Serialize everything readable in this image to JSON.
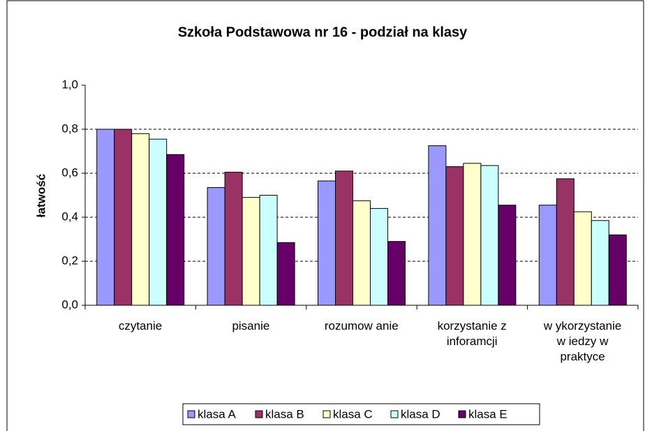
{
  "chart_data": {
    "type": "bar",
    "title": "Szkoła Podstawowa nr 16 - podział na klasy",
    "y_label": "łatwość",
    "categories": [
      "czytanie",
      "pisanie",
      "rozumow anie",
      "korzystanie z\ninforamcji",
      "w ykorzystanie\nw iedzy w\npraktyce"
    ],
    "series": [
      {
        "name": "klasa A",
        "color": "#9999ff",
        "values": [
          0.8,
          0.535,
          0.565,
          0.725,
          0.455
        ]
      },
      {
        "name": "klasa B",
        "color": "#993366",
        "values": [
          0.8,
          0.605,
          0.61,
          0.63,
          0.575
        ]
      },
      {
        "name": "klasa C",
        "color": "#ffffcc",
        "values": [
          0.78,
          0.49,
          0.475,
          0.645,
          0.425
        ]
      },
      {
        "name": "klasa D",
        "color": "#ccffff",
        "values": [
          0.755,
          0.5,
          0.44,
          0.635,
          0.385
        ]
      },
      {
        "name": "klasa E",
        "color": "#660066",
        "values": [
          0.685,
          0.285,
          0.29,
          0.455,
          0.32
        ]
      }
    ],
    "ylim": [
      0,
      1
    ],
    "yticks": [
      {
        "value": 0,
        "label": "0,0"
      },
      {
        "value": 0.2,
        "label": "0,2"
      },
      {
        "value": 0.4,
        "label": "0,4"
      },
      {
        "value": 0.6,
        "label": "0,6"
      },
      {
        "value": 0.8,
        "label": "0,8"
      },
      {
        "value": 1,
        "label": "1,0"
      }
    ],
    "grid": true,
    "legend": "bottom"
  }
}
